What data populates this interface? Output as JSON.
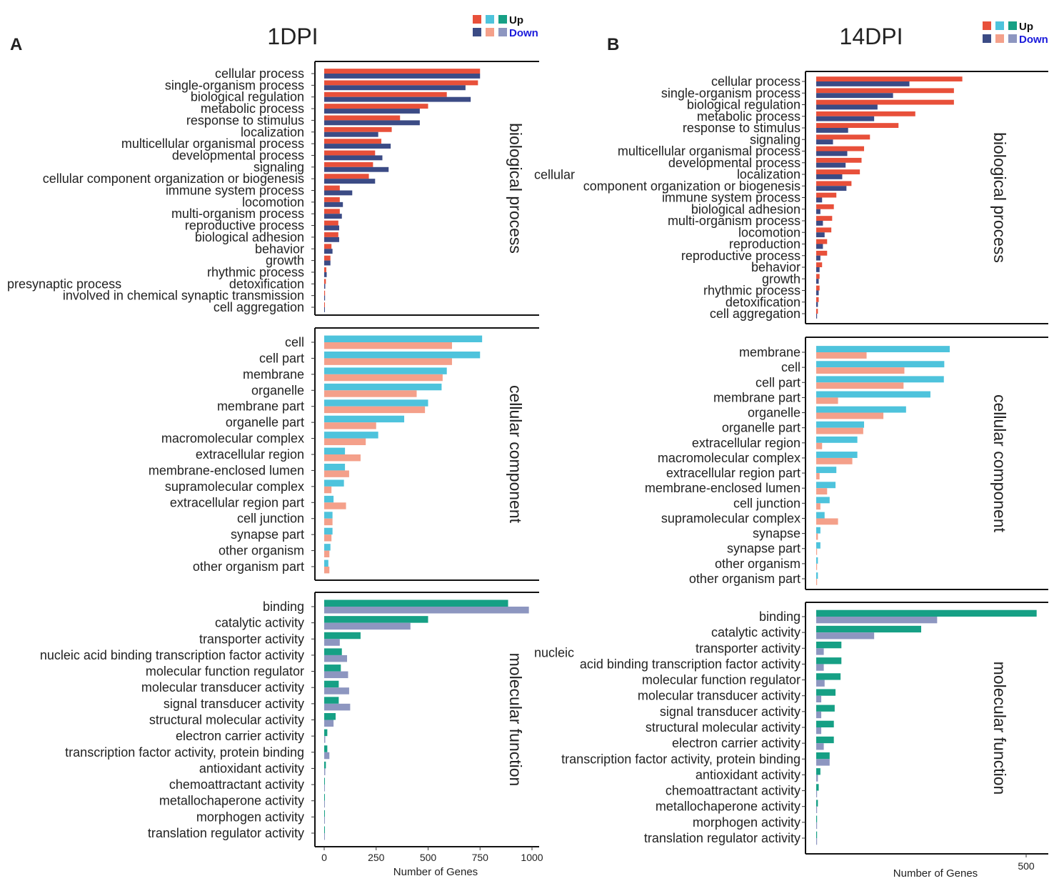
{
  "legend": {
    "up_label": "Up",
    "down_label": "Down",
    "up_colors": [
      "#E8503A",
      "#4EC3DC",
      "#16A085"
    ],
    "down_colors": [
      "#3B4B85",
      "#F4A08A",
      "#8D96C0"
    ]
  },
  "colors": {
    "bp": {
      "up": "#E8503A",
      "down": "#3B4B85"
    },
    "cc": {
      "up": "#4EC3DC",
      "down": "#F4A08A"
    },
    "mf": {
      "up": "#16A085",
      "down": "#8D96C0"
    }
  },
  "chart_data": [
    {
      "type": "bar",
      "orientation": "horizontal",
      "panel_letter": "A",
      "title": "1DPI",
      "xlabel": "Number of Genes",
      "xlim": [
        0,
        1000
      ],
      "xticks": [
        "0",
        "250",
        "500",
        "750",
        "1000"
      ],
      "facets": [
        {
          "name": "biological process",
          "key": "bp",
          "categories": [
            "cellular process",
            "single-organism process",
            "biological regulation",
            "metabolic process",
            "response to stimulus",
            "localization",
            "multicellular organismal process",
            "developmental process",
            "signaling",
            "cellular component organization or biogenesis",
            "immune system process",
            "locomotion",
            "multi-organism process",
            "reproductive process",
            "biological adhesion",
            "behavior",
            "growth",
            "rhythmic process",
            "detoxification",
            "presynaptic process involved in chemical synaptic transmission",
            "cell aggregation"
          ],
          "label_lines": [
            [
              "cellular process"
            ],
            [
              "single-organism process"
            ],
            [
              "biological regulation"
            ],
            [
              "metabolic process"
            ],
            [
              "response to stimulus"
            ],
            [
              "localization"
            ],
            [
              "multicellular organismal process"
            ],
            [
              "developmental process"
            ],
            [
              "signaling"
            ],
            [
              "cellular component organization or biogenesis"
            ],
            [
              "immune system process"
            ],
            [
              "locomotion"
            ],
            [
              "multi-organism process"
            ],
            [
              "reproductive process"
            ],
            [
              "biological adhesion"
            ],
            [
              "behavior"
            ],
            [
              "growth"
            ],
            [
              "rhythmic process"
            ],
            [
              "detoxification"
            ],
            [
              "presynaptic process",
              "involved in chemical synaptic transmission"
            ],
            [
              "cell aggregation"
            ]
          ],
          "series": [
            {
              "name": "Up",
              "values": [
                750,
                740,
                590,
                500,
                365,
                325,
                275,
                245,
                235,
                215,
                75,
                75,
                75,
                68,
                68,
                35,
                30,
                10,
                8,
                4,
                2
              ]
            },
            {
              "name": "Down",
              "values": [
                750,
                680,
                705,
                460,
                460,
                260,
                320,
                280,
                310,
                245,
                135,
                90,
                85,
                72,
                72,
                40,
                30,
                12,
                5,
                4,
                2
              ]
            }
          ]
        },
        {
          "name": "cellular component",
          "key": "cc",
          "categories": [
            "cell",
            "cell part",
            "membrane",
            "organelle",
            "membrane part",
            "organelle part",
            "macromolecular complex",
            "extracellular region",
            "membrane-enclosed lumen",
            "supramolecular complex",
            "extracellular region part",
            "cell junction",
            "synapse part",
            "other organism",
            "other organism part"
          ],
          "label_lines": [
            [
              "cell"
            ],
            [
              "cell part"
            ],
            [
              "membrane"
            ],
            [
              "organelle"
            ],
            [
              "membrane part"
            ],
            [
              "organelle part"
            ],
            [
              "macromolecular complex"
            ],
            [
              "extracellular region"
            ],
            [
              "membrane-enclosed lumen"
            ],
            [
              "supramolecular complex"
            ],
            [
              "extracellular region part"
            ],
            [
              "cell junction"
            ],
            [
              "synapse part"
            ],
            [
              "other organism"
            ],
            [
              "other organism part"
            ]
          ],
          "series": [
            {
              "name": "Up",
              "values": [
                760,
                750,
                590,
                565,
                500,
                385,
                260,
                100,
                100,
                95,
                45,
                40,
                40,
                30,
                20
              ]
            },
            {
              "name": "Down",
              "values": [
                615,
                615,
                570,
                445,
                485,
                250,
                200,
                175,
                120,
                35,
                105,
                40,
                35,
                25,
                25
              ]
            }
          ]
        },
        {
          "name": "molecular function",
          "key": "mf",
          "categories": [
            "binding",
            "catalytic activity",
            "transporter activity",
            "nucleic acid binding transcription factor activity",
            "molecular function regulator",
            "molecular transducer activity",
            "signal transducer activity",
            "structural molecular activity",
            "electron carrier activity",
            "transcription factor activity, protein binding",
            "antioxidant activity",
            "chemoattractant activity",
            "metallochaperone activity",
            "morphogen activity",
            "translation regulator activity"
          ],
          "label_lines": [
            [
              "binding"
            ],
            [
              "catalytic activity"
            ],
            [
              "transporter activity"
            ],
            [
              "nucleic acid binding transcription factor activity"
            ],
            [
              "molecular function regulator"
            ],
            [
              "molecular transducer activity"
            ],
            [
              "signal transducer activity"
            ],
            [
              "structural molecular activity"
            ],
            [
              "electron carrier activity"
            ],
            [
              "transcription factor activity, protein binding"
            ],
            [
              "antioxidant activity"
            ],
            [
              "chemoattractant activity"
            ],
            [
              "metallochaperone activity"
            ],
            [
              "morphogen activity"
            ],
            [
              "translation regulator activity"
            ]
          ],
          "series": [
            {
              "name": "Up",
              "values": [
                885,
                500,
                175,
                85,
                80,
                70,
                70,
                55,
                15,
                15,
                8,
                2,
                2,
                2,
                2
              ]
            },
            {
              "name": "Down",
              "values": [
                985,
                415,
                75,
                110,
                115,
                120,
                125,
                45,
                5,
                25,
                5,
                2,
                2,
                2,
                2
              ]
            }
          ]
        }
      ]
    },
    {
      "type": "bar",
      "orientation": "horizontal",
      "panel_letter": "B",
      "title": "14DPI",
      "xlabel": "Number of Genes",
      "xlim": [
        0,
        550
      ],
      "xticks": [
        "500"
      ],
      "facets": [
        {
          "name": "biological process",
          "key": "bp",
          "categories": [
            "cellular process",
            "single-organism process",
            "biological regulation",
            "metabolic process",
            "response to stimulus",
            "signaling",
            "multicellular organismal process",
            "developmental process",
            "localization",
            "cellular component organization or biogenesis",
            "immune system process",
            "biological adhesion",
            "multi-organism process",
            "locomotion",
            "reproduction",
            "reproductive process",
            "behavior",
            "growth",
            "rhythmic process",
            "detoxification",
            "cell aggregation"
          ],
          "label_lines": [
            [
              "cellular process"
            ],
            [
              "single-organism process"
            ],
            [
              "biological regulation"
            ],
            [
              "metabolic process"
            ],
            [
              "response to stimulus"
            ],
            [
              "signaling"
            ],
            [
              "multicellular organismal process"
            ],
            [
              "developmental process"
            ],
            [
              "localization"
            ],
            [
              "cellular",
              "component organization or biogenesis"
            ],
            [
              "immune system process"
            ],
            [
              "biological adhesion"
            ],
            [
              "multi-organism process"
            ],
            [
              "locomotion"
            ],
            [
              "reproduction"
            ],
            [
              "reproductive process"
            ],
            [
              "behavior"
            ],
            [
              "growth"
            ],
            [
              "rhythmic process"
            ],
            [
              "detoxification"
            ],
            [
              "cell aggregation"
            ]
          ],
          "series": [
            {
              "name": "Up",
              "values": [
                348,
                328,
                328,
                236,
                196,
                128,
                114,
                108,
                104,
                84,
                48,
                42,
                38,
                36,
                26,
                26,
                14,
                8,
                8,
                6,
                4
              ]
            },
            {
              "name": "Down",
              "values": [
                222,
                183,
                146,
                138,
                76,
                40,
                74,
                70,
                62,
                72,
                14,
                10,
                16,
                20,
                16,
                10,
                8,
                6,
                6,
                4,
                2
              ]
            }
          ]
        },
        {
          "name": "cellular component",
          "key": "cc",
          "categories": [
            "membrane",
            "cell",
            "cell part",
            "membrane part",
            "organelle",
            "organelle part",
            "extracellular region",
            "macromolecular complex",
            "extracellular region part",
            "membrane-enclosed lumen",
            "cell junction",
            "supramolecular complex",
            "synapse",
            "synapse part",
            "other organism",
            "other organism part"
          ],
          "label_lines": [
            [
              "membrane"
            ],
            [
              "cell"
            ],
            [
              "cell part"
            ],
            [
              "membrane part"
            ],
            [
              "organelle"
            ],
            [
              "organelle part"
            ],
            [
              "extracellular region"
            ],
            [
              "macromolecular complex"
            ],
            [
              "extracellular region part"
            ],
            [
              "membrane-enclosed lumen"
            ],
            [
              "cell junction"
            ],
            [
              "supramolecular complex"
            ],
            [
              "synapse"
            ],
            [
              "synapse part"
            ],
            [
              "other organism"
            ],
            [
              "other organism part"
            ]
          ],
          "series": [
            {
              "name": "Up",
              "values": [
                318,
                305,
                304,
                272,
                214,
                114,
                98,
                98,
                48,
                46,
                32,
                20,
                10,
                10,
                4,
                4
              ]
            },
            {
              "name": "Down",
              "values": [
                120,
                210,
                208,
                52,
                160,
                112,
                14,
                86,
                8,
                26,
                10,
                52,
                4,
                2,
                2,
                2
              ]
            }
          ]
        },
        {
          "name": "molecular function",
          "key": "mf",
          "categories": [
            "binding",
            "catalytic activity",
            "transporter activity",
            "nucleic acid binding transcription factor activity",
            "molecular function regulator",
            "molecular transducer activity",
            "signal transducer activity",
            "structural molecular activity",
            "electron carrier activity",
            "transcription factor activity, protein binding",
            "antioxidant activity",
            "chemoattractant activity",
            "metallochaperone activity",
            "morphogen activity",
            "translation regulator activity"
          ],
          "label_lines": [
            [
              "binding"
            ],
            [
              "catalytic activity"
            ],
            [
              "transporter activity"
            ],
            [
              "nucleic",
              "acid binding transcription factor activity"
            ],
            [
              "molecular function regulator"
            ],
            [
              "molecular transducer activity"
            ],
            [
              "signal transducer activity"
            ],
            [
              "structural molecular activity"
            ],
            [
              "electron carrier activity"
            ],
            [
              "transcription factor activity, protein binding"
            ],
            [
              "antioxidant activity"
            ],
            [
              "chemoattractant activity"
            ],
            [
              "metallochaperone activity"
            ],
            [
              "morphogen activity"
            ],
            [
              "translation regulator activity"
            ]
          ],
          "series": [
            {
              "name": "Up",
              "values": [
                525,
                250,
                60,
                60,
                58,
                46,
                44,
                42,
                42,
                32,
                10,
                6,
                4,
                2,
                2
              ]
            },
            {
              "name": "Down",
              "values": [
                288,
                138,
                18,
                18,
                20,
                12,
                12,
                12,
                18,
                32,
                4,
                2,
                2,
                2,
                2
              ]
            }
          ]
        }
      ]
    }
  ]
}
